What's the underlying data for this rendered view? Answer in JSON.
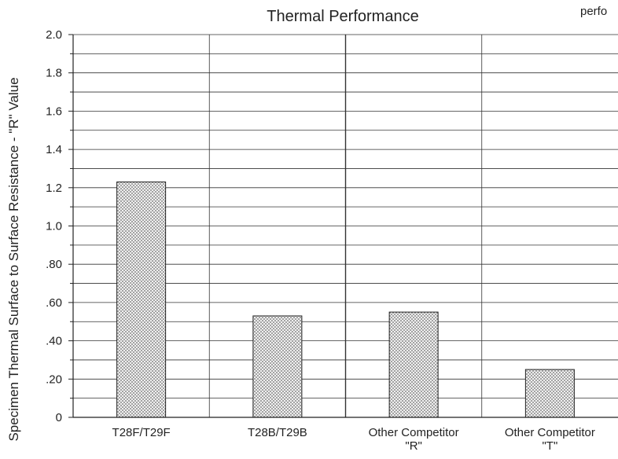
{
  "corner_text": "perfo",
  "chart_data": {
    "type": "bar",
    "title": "Thermal Performance",
    "xlabel": "",
    "ylabel": "Specimen Thermal Surface to Surface Resistance - \"R\" Value",
    "categories": [
      [
        "T28F/T29F"
      ],
      [
        "T28B/T29B"
      ],
      [
        "Other Competitor",
        "\"R\""
      ],
      [
        "Other Competitor",
        "\"T\""
      ]
    ],
    "values": [
      1.23,
      0.53,
      0.55,
      0.25
    ],
    "ylim": [
      0,
      2.0
    ],
    "yticks": [
      0,
      0.2,
      0.4,
      0.6,
      0.8,
      1.0,
      1.2,
      1.4,
      1.6,
      1.8,
      2.0
    ],
    "ytick_labels": [
      "0",
      ".20",
      ".40",
      ".60",
      ".80",
      "1.0",
      "1.2",
      "1.4",
      "1.6",
      "1.8",
      "2.0"
    ],
    "minor_grid_step": 0.1,
    "grid": true,
    "bar_pattern": "crosshatch",
    "colors": {
      "bar_fill": "#9a9a9a",
      "hatch": "#ffffff",
      "grid": "#333333",
      "axis": "#222222"
    }
  }
}
